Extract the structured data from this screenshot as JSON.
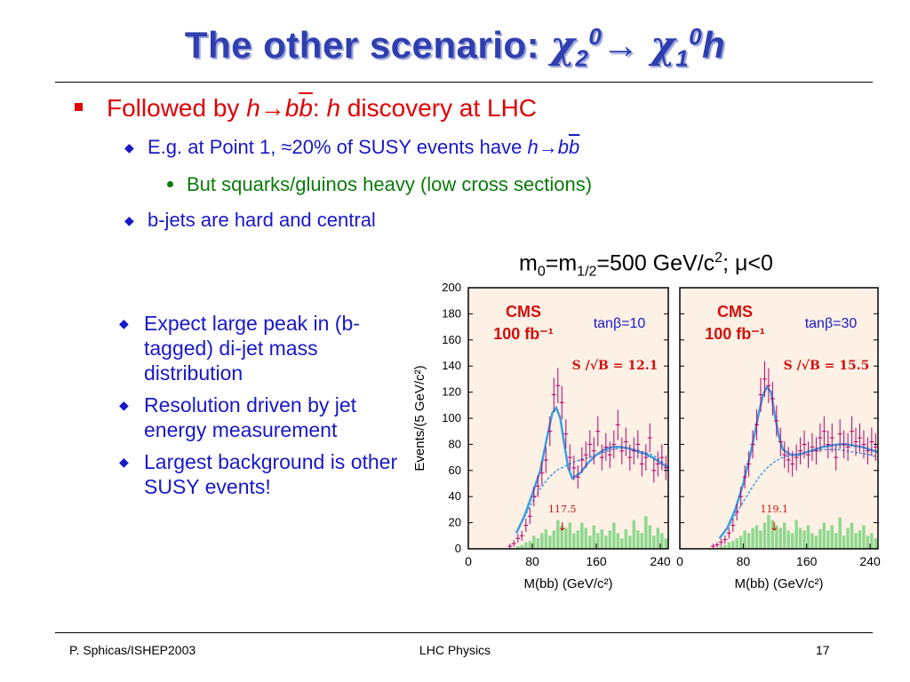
{
  "slide": {
    "title_text": "The other scenario: ",
    "title_chi": "χ",
    "title_sub2": "2",
    "title_sup0a": "0",
    "title_arrow": "→ ",
    "title_chi2": "χ",
    "title_sub1": "1",
    "title_sup0b": "0",
    "title_h": "h",
    "bullet1": {
      "text1": "Followed by ",
      "h": "h",
      "arrow": "→",
      "b": "b",
      "bbar": "b",
      "colon": ": ",
      "h2": "h",
      "text2": " discovery at LHC"
    },
    "bullet2": {
      "text1": "E.g. at Point 1, ≈20% of SUSY events have ",
      "h": "h",
      "arrow": "→",
      "b": "b",
      "bbar": "b"
    },
    "bullet3": "But squarks/gluinos heavy (low cross sections)",
    "bullet4": "b-jets are hard and central",
    "left_items": [
      "Expect large peak in (b-tagged) di-jet mass distribution",
      "Resolution driven by jet energy measurement",
      "Largest background is other SUSY events!"
    ],
    "chart_heading": {
      "m0": "m",
      "sub0": "0",
      "eq": "=m",
      "sub12": "1/2",
      "rest": "=500 GeV/c",
      "sup2": "2",
      "tail": "; μ<0"
    }
  },
  "footer": {
    "left": "P. Sphicas/ISHEP2003",
    "center": "LHC Physics",
    "right": "17"
  },
  "colors": {
    "title": "#2f3fb0",
    "accent_red": "#e00000",
    "bullet_blue": "#1818c8",
    "green_text": "#0a7a0a",
    "panel_bg": "#fdf0e4",
    "fit_curve": "#3aa0e0",
    "data_points": "#b4006e",
    "histogram": "#8fd88f",
    "cms_red": "#d01010"
  },
  "chart_data": [
    {
      "type": "scatter",
      "cms_label": "CMS",
      "lumi_label": "100 fb⁻¹",
      "tanb_label": "tanβ=10",
      "signif_label": "S /√B  = 12.1",
      "peak_label": "117.5",
      "arrow_symbol": "↓",
      "peak_x": 117.5,
      "xlim": [
        0,
        250
      ],
      "ylim": [
        0,
        200
      ],
      "xticks": [
        0,
        80,
        160,
        240
      ],
      "yticks": [
        0,
        20,
        40,
        60,
        80,
        100,
        120,
        140,
        160,
        180,
        200
      ],
      "xlabel": "M(bb)  (GeV/c²)",
      "ylabel": "Events/(5 GeV/c²)",
      "data_x": [
        52,
        57,
        62,
        67,
        72,
        77,
        82,
        87,
        92,
        97,
        102,
        107,
        112,
        117,
        122,
        127,
        132,
        137,
        142,
        147,
        152,
        157,
        162,
        167,
        172,
        177,
        182,
        187,
        192,
        197,
        202,
        207,
        212,
        217,
        222,
        227,
        232,
        237,
        242,
        247
      ],
      "data_y": [
        2,
        4,
        8,
        10,
        18,
        25,
        40,
        48,
        58,
        68,
        90,
        118,
        125,
        112,
        88,
        70,
        62,
        55,
        68,
        72,
        80,
        75,
        90,
        70,
        78,
        72,
        80,
        95,
        75,
        82,
        70,
        75,
        80,
        65,
        70,
        85,
        60,
        65,
        70,
        62
      ],
      "signal_fit_x": [
        60,
        70,
        80,
        90,
        100,
        105,
        110,
        115,
        120,
        125,
        130,
        140,
        150,
        160,
        170,
        180,
        190,
        200,
        210,
        220,
        230,
        240,
        250
      ],
      "signal_fit_y": [
        12,
        25,
        42,
        60,
        90,
        104,
        108,
        100,
        80,
        62,
        54,
        58,
        66,
        72,
        76,
        78,
        78,
        77,
        75,
        73,
        70,
        66,
        62
      ],
      "bkg_fit_x": [
        60,
        70,
        80,
        90,
        100,
        110,
        120,
        130,
        140,
        150,
        160,
        170,
        180,
        190,
        200,
        210,
        220,
        230,
        240,
        250
      ],
      "bkg_fit_y": [
        12,
        24,
        36,
        46,
        54,
        60,
        63,
        66,
        68,
        70,
        72,
        74,
        76,
        77,
        77,
        76,
        74,
        72,
        68,
        63
      ],
      "hist_x": [
        62,
        67,
        72,
        77,
        82,
        87,
        92,
        97,
        102,
        107,
        112,
        117,
        122,
        127,
        132,
        137,
        142,
        147,
        152,
        157,
        162,
        167,
        172,
        177,
        182,
        187,
        192,
        197,
        202,
        207,
        212,
        217,
        222,
        227,
        232,
        237,
        242,
        247
      ],
      "hist_y": [
        2,
        3,
        5,
        6,
        10,
        8,
        12,
        15,
        10,
        14,
        22,
        18,
        16,
        20,
        12,
        14,
        20,
        16,
        10,
        18,
        12,
        15,
        10,
        14,
        20,
        12,
        8,
        15,
        10,
        22,
        14,
        12,
        25,
        18,
        10,
        16,
        12,
        8
      ]
    },
    {
      "type": "scatter",
      "cms_label": "CMS",
      "lumi_label": "100 fb⁻¹",
      "tanb_label": "tanβ=30",
      "signif_label": "S /√B  = 15.5",
      "peak_label": "119.1",
      "arrow_symbol": "↓",
      "peak_x": 119.1,
      "xlim": [
        0,
        250
      ],
      "ylim": [
        0,
        200
      ],
      "xticks": [
        0,
        80,
        160,
        240
      ],
      "yticks": [
        0,
        20,
        40,
        60,
        80,
        100,
        120,
        140,
        160,
        180,
        200
      ],
      "xlabel": "M(bb)  (GeV/c²)",
      "ylabel": "",
      "data_x": [
        42,
        47,
        52,
        57,
        62,
        67,
        72,
        77,
        82,
        87,
        92,
        97,
        102,
        107,
        112,
        117,
        122,
        127,
        132,
        137,
        142,
        147,
        152,
        157,
        162,
        167,
        172,
        177,
        182,
        187,
        192,
        197,
        202,
        207,
        212,
        217,
        222,
        227,
        232,
        237,
        242,
        247
      ],
      "data_y": [
        2,
        3,
        5,
        7,
        12,
        18,
        28,
        40,
        55,
        65,
        80,
        95,
        118,
        130,
        125,
        115,
        98,
        82,
        72,
        68,
        65,
        70,
        75,
        80,
        72,
        78,
        75,
        85,
        90,
        80,
        85,
        70,
        88,
        80,
        78,
        90,
        82,
        85,
        80,
        75,
        82,
        78
      ],
      "signal_fit_x": [
        50,
        60,
        70,
        80,
        90,
        100,
        105,
        110,
        115,
        120,
        125,
        130,
        140,
        150,
        160,
        170,
        180,
        190,
        200,
        210,
        220,
        230,
        240,
        250
      ],
      "signal_fit_y": [
        8,
        16,
        30,
        50,
        75,
        105,
        118,
        124,
        120,
        102,
        86,
        76,
        72,
        72,
        74,
        76,
        78,
        79,
        80,
        80,
        79,
        78,
        76,
        74
      ],
      "bkg_fit_x": [
        50,
        60,
        70,
        80,
        90,
        100,
        110,
        120,
        130,
        140,
        150,
        160,
        170,
        180,
        190,
        200,
        210,
        220,
        230,
        240,
        250
      ],
      "bkg_fit_y": [
        8,
        16,
        26,
        36,
        46,
        55,
        62,
        67,
        70,
        72,
        73,
        74,
        75,
        76,
        76,
        76,
        75,
        74,
        73,
        72,
        70
      ],
      "hist_x": [
        52,
        57,
        62,
        67,
        72,
        77,
        82,
        87,
        92,
        97,
        102,
        107,
        112,
        117,
        122,
        127,
        132,
        137,
        142,
        147,
        152,
        157,
        162,
        167,
        172,
        177,
        182,
        187,
        192,
        197,
        202,
        207,
        212,
        217,
        222,
        227,
        232,
        237,
        242,
        247
      ],
      "hist_y": [
        2,
        3,
        5,
        6,
        8,
        10,
        14,
        12,
        16,
        18,
        14,
        20,
        26,
        22,
        18,
        16,
        20,
        14,
        12,
        22,
        16,
        14,
        18,
        12,
        10,
        15,
        20,
        14,
        18,
        12,
        24,
        10,
        16,
        20,
        12,
        14,
        18,
        10,
        12,
        8
      ]
    }
  ]
}
